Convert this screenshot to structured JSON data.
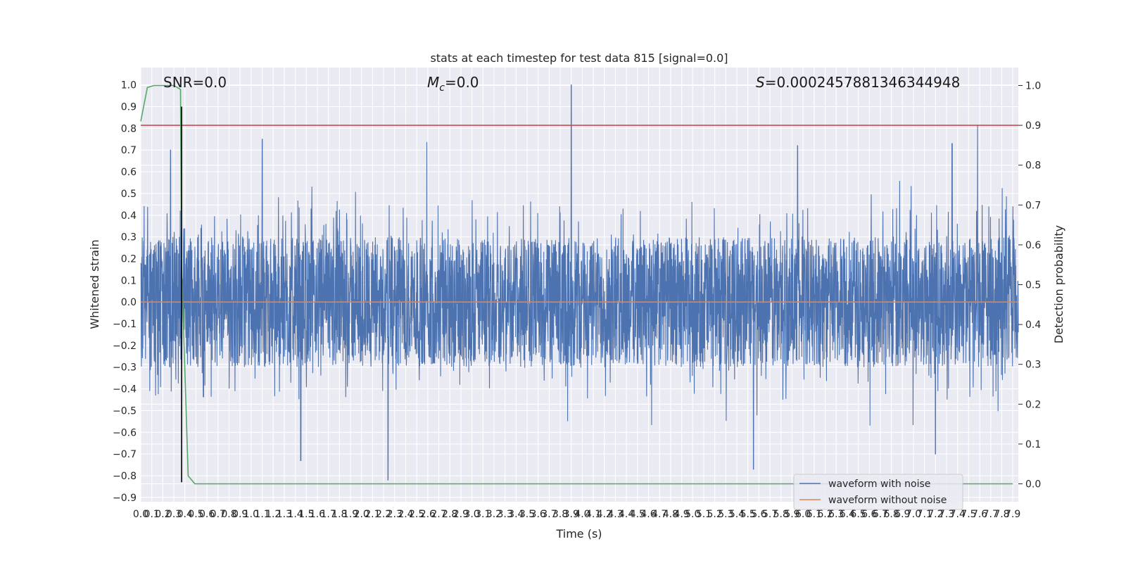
{
  "chart_data": {
    "type": "line",
    "title": "stats at each timestep for test data 815 [signal=0.0]",
    "xlabel": "Time (s)",
    "ylabel": "Whitened strain",
    "ylabel_right": "Detection probability",
    "xlim": [
      0.0,
      7.95
    ],
    "ylim": [
      -0.92,
      1.08
    ],
    "ylim_right": [
      -0.045,
      1.045
    ],
    "x_ticks_step": 0.1,
    "y_ticks": [
      -0.9,
      -0.8,
      -0.7,
      -0.6,
      -0.5,
      -0.4,
      -0.3,
      -0.2,
      -0.1,
      0.0,
      0.1,
      0.2,
      0.3,
      0.4,
      0.5,
      0.6,
      0.7,
      0.8,
      0.9,
      1.0
    ],
    "y_ticks_right": [
      0.0,
      0.1,
      0.2,
      0.3,
      0.4,
      0.5,
      0.6,
      0.7,
      0.8,
      0.9,
      1.0
    ],
    "grid": true,
    "legend_position": "lower-right",
    "annotations": {
      "snr": "SNR=0.0",
      "mc_symbol": "M",
      "mc_subscript": "c",
      "mc_value": "=0.0",
      "s_symbol": "S",
      "s_value": "=0.0002457881346344948"
    },
    "series": [
      {
        "name": "waveform with noise",
        "color": "#4c72b0",
        "description_style": "dense noise",
        "noise_envelope": 0.3,
        "peaks": [
          {
            "x": 3.9,
            "y": 1.0
          },
          {
            "x": 1.1,
            "y": 0.75
          },
          {
            "x": 0.27,
            "y": 0.7
          },
          {
            "x": 7.35,
            "y": 0.73
          },
          {
            "x": 5.95,
            "y": 0.72
          },
          {
            "x": 2.24,
            "y": -0.82
          },
          {
            "x": 1.45,
            "y": -0.73
          },
          {
            "x": 5.55,
            "y": -0.77
          },
          {
            "x": 7.2,
            "y": -0.7
          }
        ]
      },
      {
        "name": "waveform without noise",
        "color": "#dd8452",
        "x": [
          0.0,
          7.95
        ],
        "y": [
          0.0,
          0.0
        ]
      },
      {
        "name": "detection probability",
        "axis": "right",
        "color": "#55a868",
        "x": [
          0.0,
          0.06,
          0.12,
          0.18,
          0.24,
          0.3,
          0.36,
          0.37,
          0.43,
          0.49,
          7.9
        ],
        "y": [
          0.91,
          0.995,
          1.0,
          1.0,
          1.0,
          1.0,
          0.99,
          0.55,
          0.02,
          0.0,
          0.0
        ]
      }
    ],
    "threshold": {
      "axis": "right",
      "value": 0.9,
      "color": "#c44e52"
    },
    "marker_line": {
      "x": 0.37,
      "y_range": [
        -0.83,
        0.9
      ],
      "color": "#000000"
    }
  }
}
